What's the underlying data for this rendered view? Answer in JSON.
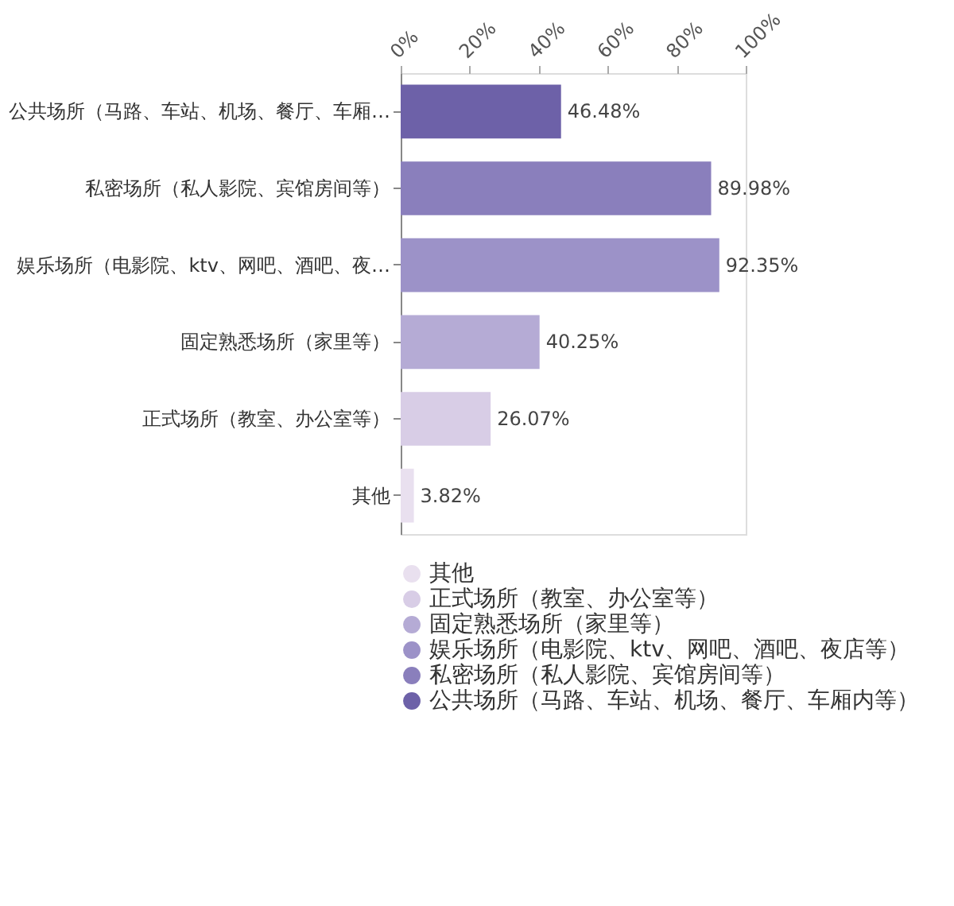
{
  "chart_data": {
    "type": "bar",
    "orientation": "horizontal",
    "categories": [
      "公共场所（马路、车站、机场、餐厅、车厢…",
      "私密场所（私人影院、宾馆房间等）",
      "娱乐场所（电影院、ktv、网吧、酒吧、夜…",
      "固定熟悉场所（家里等）",
      "正式场所（教室、办公室等）",
      "其他"
    ],
    "series": [
      {
        "name": "其他",
        "color": "#e9e0ef",
        "values": [
          null,
          null,
          null,
          null,
          null,
          3.82
        ],
        "value_labels": [
          null,
          null,
          null,
          null,
          null,
          "3.82%"
        ]
      },
      {
        "name": "正式场所（教室、办公室等）",
        "color": "#d8cde6",
        "values": [
          null,
          null,
          null,
          null,
          26.07,
          null
        ],
        "value_labels": [
          null,
          null,
          null,
          null,
          "26.07%",
          null
        ]
      },
      {
        "name": "固定熟悉场所（家里等）",
        "color": "#b5abd5",
        "values": [
          null,
          null,
          null,
          40.25,
          null,
          null
        ],
        "value_labels": [
          null,
          null,
          null,
          "40.25%",
          null,
          null
        ]
      },
      {
        "name": "娱乐场所（电影院、ktv、网吧、酒吧、夜店等）",
        "color": "#9c92c8",
        "values": [
          null,
          null,
          92.35,
          null,
          null,
          null
        ],
        "value_labels": [
          null,
          null,
          "92.35%",
          null,
          null,
          null
        ]
      },
      {
        "name": "私密场所（私人影院、宾馆房间等）",
        "color": "#8a7fbc",
        "values": [
          null,
          89.98,
          null,
          null,
          null,
          null
        ],
        "value_labels": [
          null,
          "89.98%",
          null,
          null,
          null,
          null
        ]
      },
      {
        "name": "公共场所（马路、车站、机场、餐厅、车厢内等）",
        "color": "#6d61a8",
        "values": [
          46.48,
          null,
          null,
          null,
          null,
          null
        ],
        "value_labels": [
          "46.48%",
          null,
          null,
          null,
          null,
          null
        ]
      }
    ],
    "xlim": [
      0,
      100
    ],
    "xticks": [
      {
        "value": 0,
        "label": "0%"
      },
      {
        "value": 20,
        "label": "20%"
      },
      {
        "value": 40,
        "label": "40%"
      },
      {
        "value": 60,
        "label": "60%"
      },
      {
        "value": 80,
        "label": "80%"
      },
      {
        "value": 100,
        "label": "100%"
      }
    ],
    "grid": false,
    "legend": "bottom"
  }
}
